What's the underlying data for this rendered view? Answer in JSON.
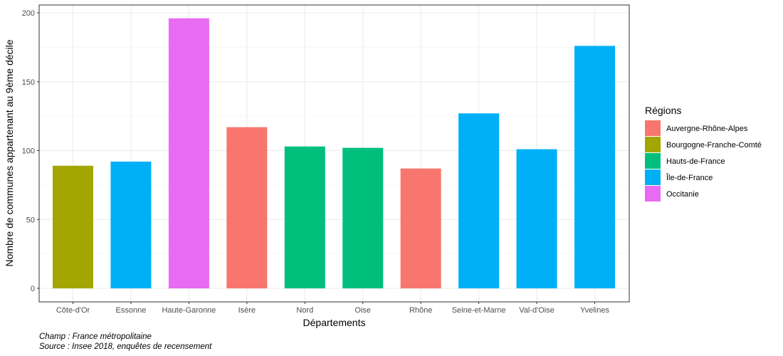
{
  "chart_data": {
    "type": "bar",
    "xlabel": "Départements",
    "ylabel": "Nombre de communes appartenant au 9ème décile",
    "ylim": [
      0,
      200
    ],
    "yticks": [
      0,
      50,
      100,
      150,
      200
    ],
    "grid": true,
    "legend_position": "right",
    "legend_title": "Régions",
    "categories": [
      "Côte-d'Or",
      "Essonne",
      "Haute-Garonne",
      "Isère",
      "Nord",
      "Oise",
      "Rhône",
      "Seine-et-Marne",
      "Val-d'Oise",
      "Yvelines"
    ],
    "values": [
      89,
      92,
      196,
      117,
      103,
      102,
      87,
      127,
      101,
      176
    ],
    "bar_regions": [
      "Bourgogne-Franche-Comté",
      "Île-de-France",
      "Occitanie",
      "Auvergne-Rhône-Alpes",
      "Hauts-de-France",
      "Hauts-de-France",
      "Auvergne-Rhône-Alpes",
      "Île-de-France",
      "Île-de-France",
      "Île-de-France"
    ],
    "legend": [
      {
        "name": "Auvergne-Rhône-Alpes",
        "color": "#F8766D"
      },
      {
        "name": "Bourgogne-Franche-Comté",
        "color": "#A3A500"
      },
      {
        "name": "Hauts-de-France",
        "color": "#00BF7D"
      },
      {
        "name": "Île-de-France",
        "color": "#00B0F6"
      },
      {
        "name": "Occitanie",
        "color": "#E76BF3"
      }
    ]
  },
  "caption": {
    "line1": "Champ : France métropolitaine",
    "line2": "Source : Insee 2018, enquêtes de recensement"
  }
}
